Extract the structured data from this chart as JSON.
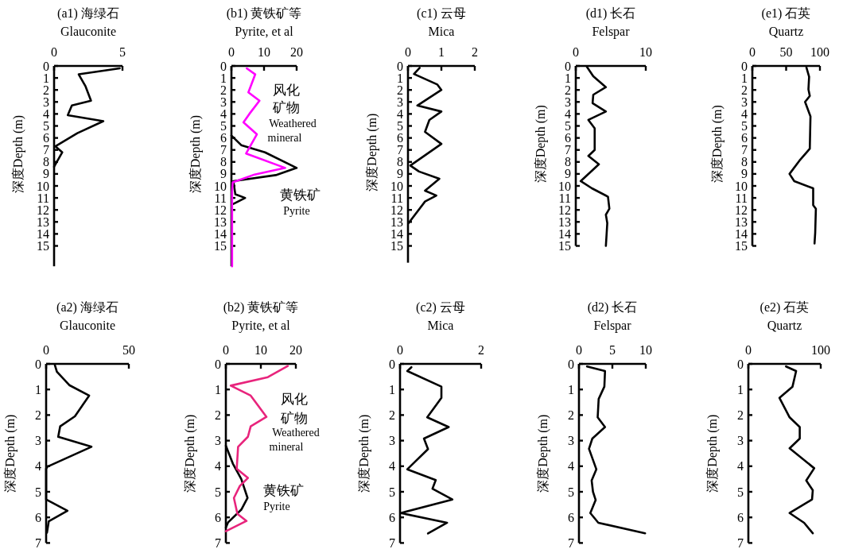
{
  "chart_data": [
    {
      "type": "line",
      "title": "(a1) 海绿石",
      "subtitle": "Glauconite",
      "ylabel": "深度Depth (m)",
      "xlim": [
        0,
        5
      ],
      "xticks": [
        0,
        5
      ],
      "ylim": [
        16.7,
        0
      ],
      "yticks": [
        0,
        1,
        2,
        3,
        4,
        5,
        6,
        7,
        8,
        9,
        10,
        11,
        12,
        13,
        14,
        15
      ],
      "series": [
        {
          "color": "#000000",
          "x": [
            4.8,
            1.8,
            2.3,
            2.7,
            1.3,
            1.0,
            3.6,
            1.7,
            0.1,
            0.6,
            0
          ],
          "values": [
            0.2,
            0.7,
            1.7,
            2.9,
            3.3,
            4.1,
            4.6,
            5.6,
            6.7,
            7.2,
            8.4
          ]
        }
      ]
    },
    {
      "type": "line",
      "title": "(b1) 黄铁矿等",
      "subtitle": "Pyrite, et al",
      "ylabel": "深度Depth (m)",
      "xlim": [
        0,
        20
      ],
      "xticks": [
        0,
        10,
        20
      ],
      "ylim": [
        16.7,
        0
      ],
      "yticks": [
        0,
        1,
        2,
        3,
        4,
        5,
        6,
        7,
        8,
        9,
        10,
        11,
        12,
        13,
        14,
        15
      ],
      "series": [
        {
          "color": "#000000",
          "x": [
            0,
            3,
            10.3,
            20,
            13.6,
            0.6,
            1.2,
            4.2,
            0.6
          ],
          "values": [
            5.8,
            6.6,
            7.2,
            8.5,
            9.1,
            9.6,
            10.7,
            11.0,
            11.5
          ]
        },
        {
          "color": "#ff00ff",
          "x": [
            4.7,
            7.3,
            5.2,
            8.6,
            5.5,
            3.7,
            7.8,
            4.5,
            16.5,
            7.1,
            0.4,
            0.2,
            0.2
          ],
          "values": [
            0.2,
            0.7,
            2.2,
            2.9,
            4.0,
            4.7,
            5.7,
            7.3,
            8.5,
            9.05,
            9.7,
            10.5,
            16.7
          ]
        }
      ],
      "annotations": [
        "风化",
        "矿物",
        "Weathered",
        "mineral",
        "黄铁矿",
        "Pyrite"
      ]
    },
    {
      "type": "line",
      "title": "(c1) 云母",
      "subtitle": "Mica",
      "ylabel": "深度Depth (m)",
      "xlim": [
        0,
        2
      ],
      "xticks": [
        0,
        1,
        2
      ],
      "ylim": [
        16.4,
        0
      ],
      "yticks": [
        0,
        1,
        2,
        3,
        4,
        5,
        6,
        7,
        8,
        9,
        10,
        11,
        12,
        13,
        14,
        15
      ],
      "series": [
        {
          "color": "#000000",
          "x": [
            0.35,
            0.18,
            0.88,
            1.0,
            0.28,
            1.0,
            0.64,
            0.51,
            1.0,
            0.07,
            0.33,
            0.94,
            0.51,
            0.85,
            0.51,
            0.02
          ],
          "values": [
            0.16,
            0.67,
            1.55,
            2.0,
            3.3,
            3.8,
            4.5,
            5.5,
            6.5,
            8.3,
            8.8,
            9.4,
            10.4,
            10.8,
            11.3,
            13.1
          ]
        }
      ]
    },
    {
      "type": "line",
      "title": "(d1) 长石",
      "subtitle": "Felspar",
      "ylabel": "深度Depth (m)",
      "xlim": [
        0,
        10
      ],
      "xticks": [
        0,
        10
      ],
      "ylim": [
        15,
        0
      ],
      "yticks": [
        0,
        1,
        2,
        3,
        4,
        5,
        6,
        7,
        8,
        9,
        10,
        11,
        12,
        13,
        14,
        15
      ],
      "series": [
        {
          "color": "#000000",
          "x": [
            1.6,
            2.5,
            4.3,
            2.5,
            2.4,
            4.3,
            1.8,
            2.7,
            2.7,
            1.8,
            3.3,
            0.7,
            2.3,
            4.6,
            4.8,
            4.3,
            4.5,
            4.3
          ],
          "values": [
            0.08,
            0.86,
            1.77,
            2.4,
            3.1,
            3.8,
            4.5,
            5.2,
            7.0,
            7.5,
            8.2,
            9.6,
            10.2,
            10.9,
            11.9,
            12.4,
            13.1,
            15.0
          ]
        }
      ]
    },
    {
      "type": "line",
      "title": "(e1) 石英",
      "subtitle": "Quartz",
      "ylabel": "深度Depth (m)",
      "xlim": [
        0,
        100
      ],
      "xticks": [
        0,
        50,
        100
      ],
      "ylim": [
        15,
        0
      ],
      "yticks": [
        0,
        1,
        2,
        3,
        4,
        5,
        6,
        7,
        8,
        9,
        10,
        11,
        12,
        13,
        14,
        15
      ],
      "series": [
        {
          "color": "#000000",
          "x": [
            80,
            84,
            83,
            85,
            78,
            86,
            85,
            71,
            55,
            62,
            90,
            90,
            94,
            93,
            92
          ],
          "values": [
            0.13,
            0.9,
            1.95,
            2.5,
            3.0,
            4.2,
            6.9,
            7.8,
            9.0,
            9.6,
            10.2,
            11.6,
            11.9,
            13.9,
            14.8
          ]
        }
      ]
    },
    {
      "type": "line",
      "title": "(a2) 海绿石",
      "subtitle": "Glauconite",
      "ylabel": "深度Depth (m)",
      "xlim": [
        0,
        50
      ],
      "xticks": [
        0,
        50
      ],
      "ylim": [
        7,
        0
      ],
      "yticks": [
        0,
        1,
        2,
        3,
        4,
        5,
        6,
        7
      ],
      "series": [
        {
          "color": "#000000",
          "x": [
            5.3,
            6.5,
            14,
            26,
            17.4,
            8.5,
            7.3,
            27.4,
            0.8,
            0,
            0,
            12.9,
            1.6,
            0.5
          ],
          "values": [
            0.05,
            0.31,
            0.83,
            1.24,
            2.05,
            2.44,
            2.85,
            3.24,
            4.02,
            4.1,
            5.3,
            5.74,
            6.15,
            6.6
          ]
        }
      ]
    },
    {
      "type": "line",
      "title": "(b2) 黄铁矿等",
      "subtitle": "Pyrite, et al",
      "ylabel": "深度Depth (m)",
      "xlim": [
        0,
        20
      ],
      "xticks": [
        0,
        10,
        20
      ],
      "ylim": [
        7,
        0
      ],
      "yticks": [
        0,
        1,
        2,
        3,
        4,
        5,
        6,
        7
      ],
      "series": [
        {
          "color": "#000000",
          "x": [
            0,
            2.0,
            4.4,
            6.2,
            4.4,
            0.6,
            0
          ],
          "values": [
            3.2,
            3.9,
            4.5,
            5.24,
            5.7,
            6.2,
            6.4
          ]
        },
        {
          "color": "#e8247c",
          "x": [
            17.7,
            12,
            1.4,
            7.1,
            11.6,
            7.1,
            6.3,
            3.5,
            3.1,
            6.3,
            4.0,
            2.3,
            3.3,
            5.9,
            0
          ],
          "values": [
            0.08,
            0.52,
            0.85,
            1.24,
            2.07,
            2.44,
            2.85,
            3.24,
            4.1,
            4.46,
            4.77,
            5.24,
            5.86,
            6.14,
            6.54
          ]
        }
      ],
      "annotations": [
        "风化",
        "矿物",
        "Weathered",
        "mineral",
        "黄铁矿",
        "Pyrite"
      ]
    },
    {
      "type": "line",
      "title": "(c2) 云母",
      "subtitle": "Mica",
      "ylabel": "深度Depth (m)",
      "xlim": [
        0,
        2
      ],
      "xticks": [
        0,
        2
      ],
      "ylim": [
        7,
        0
      ],
      "yticks": [
        0,
        1,
        2,
        3,
        4,
        5,
        6,
        7
      ],
      "series": [
        {
          "color": "#000000",
          "x": [
            0.28,
            0.18,
            1.02,
            1.02,
            0.67,
            1.2,
            0.59,
            0.69,
            0.18,
            0.88,
            0.8,
            1.29,
            0.02,
            1.16,
            0.69
          ],
          "values": [
            0.13,
            0.28,
            0.89,
            1.33,
            2.09,
            2.47,
            2.92,
            3.33,
            4.12,
            4.54,
            4.88,
            5.3,
            5.83,
            6.21,
            6.63
          ]
        }
      ]
    },
    {
      "type": "line",
      "title": "(d2) 长石",
      "subtitle": "Felspar",
      "ylabel": "深度Depth (m)",
      "xlim": [
        0,
        10
      ],
      "xticks": [
        0,
        5,
        10
      ],
      "ylim": [
        7,
        0
      ],
      "yticks": [
        0,
        1,
        2,
        3,
        4,
        5,
        6,
        7
      ],
      "series": [
        {
          "color": "#000000",
          "x": [
            1.2,
            3.9,
            3.8,
            2.95,
            2.8,
            3.9,
            2.0,
            1.5,
            2.6,
            1.9,
            2.1,
            2.5,
            1.7,
            2.9,
            9.9
          ],
          "values": [
            0.1,
            0.28,
            0.89,
            1.37,
            2.09,
            2.47,
            2.92,
            3.32,
            4.12,
            4.56,
            5.0,
            5.32,
            5.83,
            6.21,
            6.62
          ]
        }
      ]
    },
    {
      "type": "line",
      "title": "(e2) 石英",
      "subtitle": "Quartz",
      "ylabel": "深度Depth (m)",
      "xlim": [
        0,
        100
      ],
      "xticks": [
        0,
        100
      ],
      "ylim": [
        7,
        0
      ],
      "yticks": [
        0,
        1,
        2,
        3,
        4,
        5,
        6,
        7
      ],
      "series": [
        {
          "color": "#000000",
          "x": [
            52,
            66,
            61,
            43,
            57,
            71,
            71,
            57,
            91,
            80,
            89,
            88,
            57,
            77,
            89
          ],
          "values": [
            0.1,
            0.28,
            0.89,
            1.33,
            2.09,
            2.47,
            2.92,
            3.3,
            4.08,
            4.56,
            4.94,
            5.3,
            5.83,
            6.21,
            6.62
          ]
        }
      ]
    }
  ]
}
